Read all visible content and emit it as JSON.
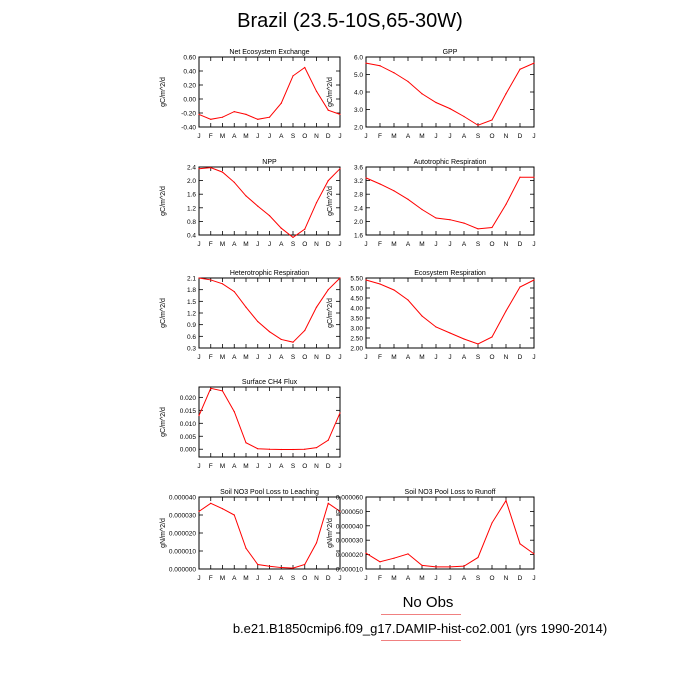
{
  "title": "Brazil (23.5-10S,65-30W)",
  "legend": {
    "obs_label": "No Obs",
    "case_label": "b.e21.B1850cmip6.f09_g17.DAMIP-hist-co2.001 (yrs 1990-2014)"
  },
  "colors": {
    "series": "#ff0000",
    "legend_line": "#f08080"
  },
  "chart_data": [
    {
      "type": "line",
      "title": "Net Ecosystem Exchange",
      "ylabel": "gC/m^2/d",
      "categories": [
        "J",
        "F",
        "M",
        "A",
        "M",
        "J",
        "J",
        "A",
        "S",
        "O",
        "N",
        "D",
        "J"
      ],
      "ylim": [
        -0.4,
        0.6
      ],
      "yticks": [
        "-0.40",
        "-0.20",
        "0.00",
        "0.20",
        "0.40",
        "0.60"
      ],
      "yticks_values": [
        -0.4,
        -0.2,
        0.0,
        0.2,
        0.4,
        0.6
      ],
      "values": [
        -0.22,
        -0.29,
        -0.26,
        -0.18,
        -0.22,
        -0.29,
        -0.26,
        -0.06,
        0.33,
        0.45,
        0.11,
        -0.16,
        -0.22
      ],
      "grid": false
    },
    {
      "type": "line",
      "title": "GPP",
      "ylabel": "gC/m^2/d",
      "categories": [
        "J",
        "F",
        "M",
        "A",
        "M",
        "J",
        "J",
        "A",
        "S",
        "O",
        "N",
        "D",
        "J"
      ],
      "ylim": [
        2.0,
        6.0
      ],
      "yticks": [
        "2.0",
        "3.0",
        "4.0",
        "5.0",
        "6.0"
      ],
      "yticks_values": [
        2.0,
        3.0,
        4.0,
        5.0,
        6.0
      ],
      "values": [
        5.65,
        5.5,
        5.1,
        4.6,
        3.9,
        3.4,
        3.05,
        2.6,
        2.1,
        2.4,
        3.9,
        5.3,
        5.65
      ],
      "grid": false
    },
    {
      "type": "line",
      "title": "NPP",
      "ylabel": "gC/m^2/d",
      "categories": [
        "J",
        "F",
        "M",
        "A",
        "M",
        "J",
        "J",
        "A",
        "S",
        "O",
        "N",
        "D",
        "J"
      ],
      "ylim": [
        0.4,
        2.4
      ],
      "yticks": [
        "0.4",
        "0.8",
        "1.2",
        "1.6",
        "2.0",
        "2.4"
      ],
      "yticks_values": [
        0.4,
        0.8,
        1.2,
        1.6,
        2.0,
        2.4
      ],
      "values": [
        2.35,
        2.38,
        2.25,
        1.95,
        1.55,
        1.25,
        0.97,
        0.6,
        0.33,
        0.57,
        1.35,
        2.0,
        2.35
      ],
      "grid": false
    },
    {
      "type": "line",
      "title": "Autotrophic Respiration",
      "ylabel": "gC/m^2/d",
      "categories": [
        "J",
        "F",
        "M",
        "A",
        "M",
        "J",
        "J",
        "A",
        "S",
        "O",
        "N",
        "D",
        "J"
      ],
      "ylim": [
        1.6,
        3.6
      ],
      "yticks": [
        "1.6",
        "2.0",
        "2.4",
        "2.8",
        "3.2",
        "3.6"
      ],
      "yticks_values": [
        1.6,
        2.0,
        2.4,
        2.8,
        3.2,
        3.6
      ],
      "values": [
        3.28,
        3.1,
        2.9,
        2.65,
        2.35,
        2.1,
        2.05,
        1.95,
        1.78,
        1.82,
        2.5,
        3.3,
        3.3
      ],
      "grid": false
    },
    {
      "type": "line",
      "title": "Heterotrophic Respiration",
      "ylabel": "gC/m^2/d",
      "categories": [
        "J",
        "F",
        "M",
        "A",
        "M",
        "J",
        "J",
        "A",
        "S",
        "O",
        "N",
        "D",
        "J"
      ],
      "ylim": [
        0.3,
        2.1
      ],
      "yticks": [
        "0.3",
        "0.6",
        "0.9",
        "1.2",
        "1.5",
        "1.8",
        "2.1"
      ],
      "yticks_values": [
        0.3,
        0.6,
        0.9,
        1.2,
        1.5,
        1.8,
        2.1
      ],
      "values": [
        2.1,
        2.05,
        1.95,
        1.75,
        1.35,
        0.98,
        0.72,
        0.52,
        0.45,
        0.75,
        1.35,
        1.8,
        2.1
      ],
      "grid": false
    },
    {
      "type": "line",
      "title": "Ecosystem Respiration",
      "ylabel": "gC/m^2/d",
      "categories": [
        "J",
        "F",
        "M",
        "A",
        "M",
        "J",
        "J",
        "A",
        "S",
        "O",
        "N",
        "D",
        "J"
      ],
      "ylim": [
        2.0,
        5.5
      ],
      "yticks": [
        "2.00",
        "2.50",
        "3.00",
        "3.50",
        "4.00",
        "4.50",
        "5.00",
        "5.50"
      ],
      "yticks_values": [
        2.0,
        2.5,
        3.0,
        3.5,
        4.0,
        4.5,
        5.0,
        5.5
      ],
      "values": [
        5.4,
        5.2,
        4.9,
        4.4,
        3.6,
        3.05,
        2.75,
        2.45,
        2.2,
        2.55,
        3.85,
        5.05,
        5.4
      ],
      "grid": false
    },
    {
      "type": "line",
      "title": "Surface CH4 Flux",
      "ylabel": "gC/m^2/d",
      "categories": [
        "J",
        "F",
        "M",
        "A",
        "M",
        "J",
        "J",
        "A",
        "S",
        "O",
        "N",
        "D",
        "J"
      ],
      "ylim": [
        -0.003,
        0.024
      ],
      "yticks": [
        "0.000",
        "0.005",
        "0.010",
        "0.015",
        "0.020"
      ],
      "yticks_values": [
        0.0,
        0.005,
        0.01,
        0.015,
        0.02
      ],
      "values": [
        0.013,
        0.0235,
        0.0225,
        0.0145,
        0.0025,
        0.0002,
        0.0,
        -0.0001,
        -0.0001,
        0.0,
        0.0006,
        0.0035,
        0.014
      ],
      "grid": false
    },
    {
      "type": "line",
      "title": "Soil NO3 Pool Loss to Leaching",
      "ylabel": "gN/m^2/d",
      "categories": [
        "J",
        "F",
        "M",
        "A",
        "M",
        "J",
        "J",
        "A",
        "S",
        "O",
        "N",
        "D",
        "J"
      ],
      "ylim": [
        0,
        4e-05
      ],
      "yticks": [
        "0.000000",
        "0.000010",
        "0.000020",
        "0.000030",
        "0.000040"
      ],
      "yticks_values": [
        0,
        1e-05,
        2e-05,
        3e-05,
        4e-05
      ],
      "values": [
        3.2e-05,
        3.65e-05,
        3.35e-05,
        3e-05,
        1.15e-05,
        2.5e-06,
        1.5e-06,
        8e-07,
        5e-07,
        2.5e-06,
        1.45e-05,
        3.65e-05,
        3.2e-05
      ],
      "grid": false
    },
    {
      "type": "line",
      "title": "Soil NO3 Pool Loss to Runoff",
      "ylabel": "gN/m^2/d",
      "categories": [
        "J",
        "F",
        "M",
        "A",
        "M",
        "J",
        "J",
        "A",
        "S",
        "O",
        "N",
        "D",
        "J"
      ],
      "ylim": [
        1e-05,
        6e-05
      ],
      "yticks": [
        "0.000010",
        "0.000020",
        "0.000030",
        "0.000040",
        "0.000050",
        "0.000060"
      ],
      "yticks_values": [
        1e-05,
        2e-05,
        3e-05,
        4e-05,
        5e-05,
        6e-05
      ],
      "values": [
        2.1e-05,
        1.5e-05,
        1.75e-05,
        2.05e-05,
        1.25e-05,
        1.15e-05,
        1.15e-05,
        1.2e-05,
        1.8e-05,
        4.2e-05,
        5.75e-05,
        2.75e-05,
        2.05e-05
      ],
      "grid": false
    }
  ]
}
